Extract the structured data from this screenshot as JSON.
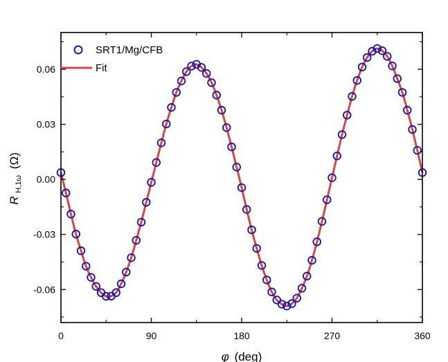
{
  "chart_data": {
    "type": "scatter",
    "xlabel_symbol": "φ",
    "xlabel_unit": "(deg)",
    "ylabel_main": "R",
    "ylabel_sub": "H,1ω",
    "ylabel_unit": "(Ω)",
    "xlim": [
      0,
      360
    ],
    "ylim": [
      -0.078,
      0.08
    ],
    "xticks": [
      0,
      90,
      180,
      270,
      360
    ],
    "xtick_labels": [
      "0",
      "90",
      "180",
      "270",
      "360"
    ],
    "yticks": [
      0.06,
      0.03,
      0.0,
      -0.03,
      -0.06
    ],
    "ytick_labels": [
      "0.06",
      "0.03",
      "0.00",
      "-0.03",
      "-0.06"
    ],
    "grid": false,
    "legend_position": "top-left",
    "colors": {
      "data": "#1a1aa8",
      "fit": "#d9454a"
    },
    "series": [
      {
        "name": "SRT1/Mg/CFB",
        "style": "open-circle",
        "x": [
          0,
          5,
          10,
          15,
          20,
          25,
          30,
          35,
          40,
          45,
          50,
          55,
          60,
          65,
          70,
          75,
          80,
          85,
          90,
          95,
          100,
          105,
          110,
          115,
          120,
          125,
          130,
          135,
          140,
          145,
          150,
          155,
          160,
          165,
          170,
          175,
          180,
          185,
          190,
          195,
          200,
          205,
          210,
          215,
          220,
          225,
          230,
          235,
          240,
          245,
          250,
          255,
          260,
          265,
          270,
          275,
          280,
          285,
          290,
          295,
          300,
          305,
          310,
          315,
          320,
          325,
          330,
          335,
          340,
          345,
          350,
          355,
          360
        ],
        "y": [
          0.0037,
          -0.0074,
          -0.0189,
          -0.0298,
          -0.0389,
          -0.0473,
          -0.0534,
          -0.0583,
          -0.0617,
          -0.0637,
          -0.0636,
          -0.0617,
          -0.0569,
          -0.0505,
          -0.0427,
          -0.0332,
          -0.0233,
          -0.0125,
          -0.0016,
          0.0092,
          0.0199,
          0.0302,
          0.0392,
          0.0474,
          0.0536,
          0.0587,
          0.0617,
          0.0627,
          0.061,
          0.0577,
          0.0527,
          0.0459,
          0.0377,
          0.0282,
          0.0177,
          0.0067,
          -0.0045,
          -0.0164,
          -0.0275,
          -0.0376,
          -0.0469,
          -0.0548,
          -0.0613,
          -0.0657,
          -0.068,
          -0.069,
          -0.0677,
          -0.0647,
          -0.0593,
          -0.0527,
          -0.0441,
          -0.034,
          -0.0229,
          -0.0111,
          0.0009,
          0.0128,
          0.0244,
          0.035,
          0.0452,
          0.0539,
          0.0612,
          0.0664,
          0.0698,
          0.0713,
          0.0701,
          0.067,
          0.0618,
          0.0549,
          0.0474,
          0.0377,
          0.0272,
          0.0158,
          0.0037
        ]
      },
      {
        "name": "Fit",
        "style": "line"
      }
    ]
  }
}
